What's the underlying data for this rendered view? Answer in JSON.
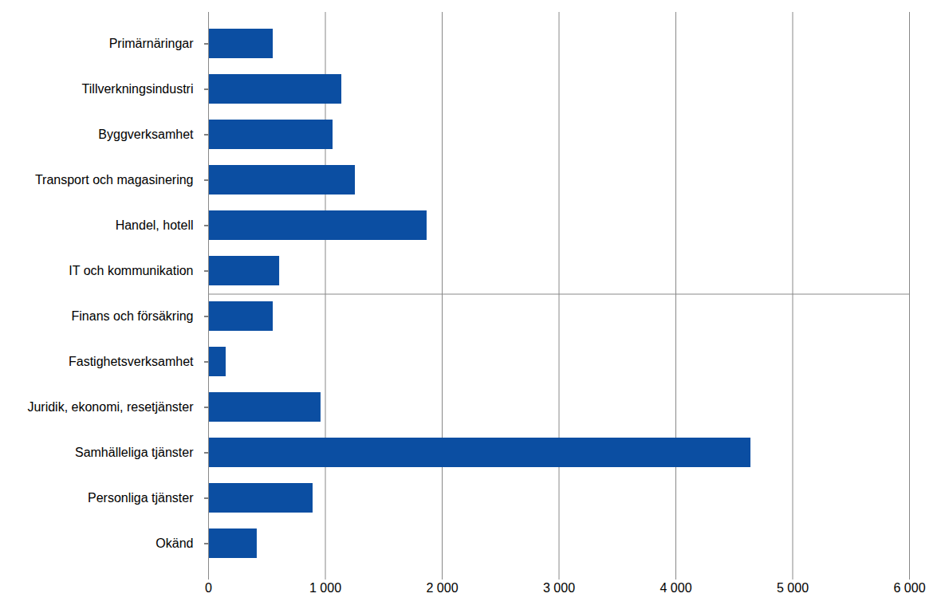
{
  "chart_data": {
    "type": "bar",
    "orientation": "horizontal",
    "categories": [
      "Primärnäringar",
      "Tillverkningsindustri",
      "Byggverksamhet",
      "Transport och magasinering",
      "Handel, hotell",
      "IT och kommunikation",
      "Finans och försäkring",
      "Fastighetsverksamhet",
      "Juridik, ekonomi, resetjänster",
      "Samhälleliga tjänster",
      "Personliga tjänster",
      "Okänd"
    ],
    "values": [
      553,
      1140,
      1065,
      1256,
      1870,
      608,
      553,
      150,
      962,
      4642,
      894,
      416
    ],
    "color": "#0b4ea2",
    "xlim": [
      0,
      6000
    ],
    "xticks": [
      0,
      {
        "value": 1000,
        "label": "1 000"
      },
      {
        "value": 2000,
        "label": "2 000"
      },
      {
        "value": 3000,
        "label": "3 000"
      },
      {
        "value": 4000,
        "label": "4 000"
      },
      {
        "value": 5000,
        "label": "5 000"
      },
      {
        "value": 6000,
        "label": "6 000"
      }
    ],
    "grid": true
  }
}
